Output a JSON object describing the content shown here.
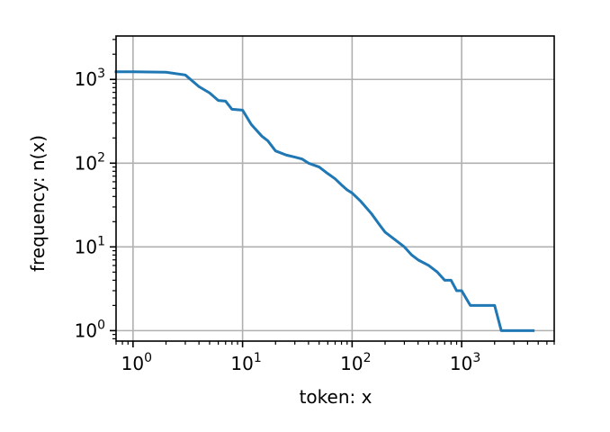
{
  "chart_data": {
    "type": "line",
    "title": "",
    "xlabel": "token: x",
    "ylabel": "frequency: n(x)",
    "x_scale": "log",
    "y_scale": "log",
    "xlim": [
      0.7,
      7000
    ],
    "ylim": [
      0.75,
      3300
    ],
    "grid": true,
    "legend": "none",
    "x_ticks": [
      {
        "base": "10",
        "exp": "0",
        "value": 1
      },
      {
        "base": "10",
        "exp": "1",
        "value": 10
      },
      {
        "base": "10",
        "exp": "2",
        "value": 100
      },
      {
        "base": "10",
        "exp": "3",
        "value": 1000
      }
    ],
    "y_ticks": [
      {
        "base": "10",
        "exp": "0",
        "value": 1
      },
      {
        "base": "10",
        "exp": "1",
        "value": 10
      },
      {
        "base": "10",
        "exp": "2",
        "value": 100
      },
      {
        "base": "10",
        "exp": "3",
        "value": 1000
      }
    ],
    "series": [
      {
        "color": "#1f77b4",
        "x": [
          0.7,
          1,
          2,
          3,
          4,
          5,
          6,
          7,
          8,
          10,
          12,
          15,
          17,
          20,
          25,
          30,
          35,
          40,
          50,
          60,
          70,
          80,
          90,
          100,
          120,
          150,
          180,
          200,
          250,
          300,
          350,
          400,
          500,
          600,
          700,
          800,
          900,
          1000,
          1200,
          1500,
          2000,
          2300,
          4500
        ],
        "y": [
          1235,
          1235,
          1220,
          1130,
          820,
          690,
          560,
          550,
          440,
          430,
          290,
          210,
          185,
          140,
          125,
          118,
          112,
          100,
          90,
          75,
          65,
          55,
          48,
          44,
          35,
          25,
          18,
          15,
          12,
          10,
          8,
          7,
          6,
          5,
          4,
          4,
          3,
          3,
          2,
          2,
          2,
          1,
          1
        ]
      }
    ]
  }
}
